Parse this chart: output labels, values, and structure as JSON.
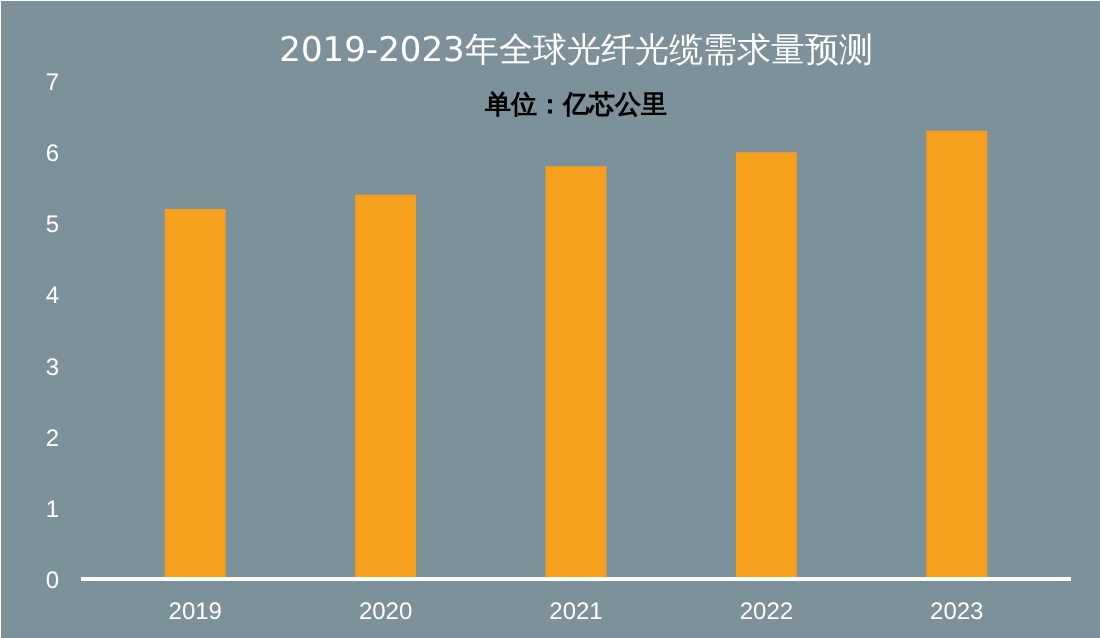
{
  "chart_data": {
    "type": "bar",
    "title": "2019-2023年全球光纤光缆需求量预测",
    "annotations": [
      "单位：亿芯公里"
    ],
    "categories": [
      "2019",
      "2020",
      "2021",
      "2022",
      "2023"
    ],
    "values": [
      5.2,
      5.4,
      5.8,
      6.0,
      6.3
    ],
    "color": "#f6a01e",
    "ylim": [
      0,
      7
    ],
    "yticks": [
      0,
      1,
      2,
      3,
      4,
      5,
      6,
      7
    ],
    "grid": false
  }
}
